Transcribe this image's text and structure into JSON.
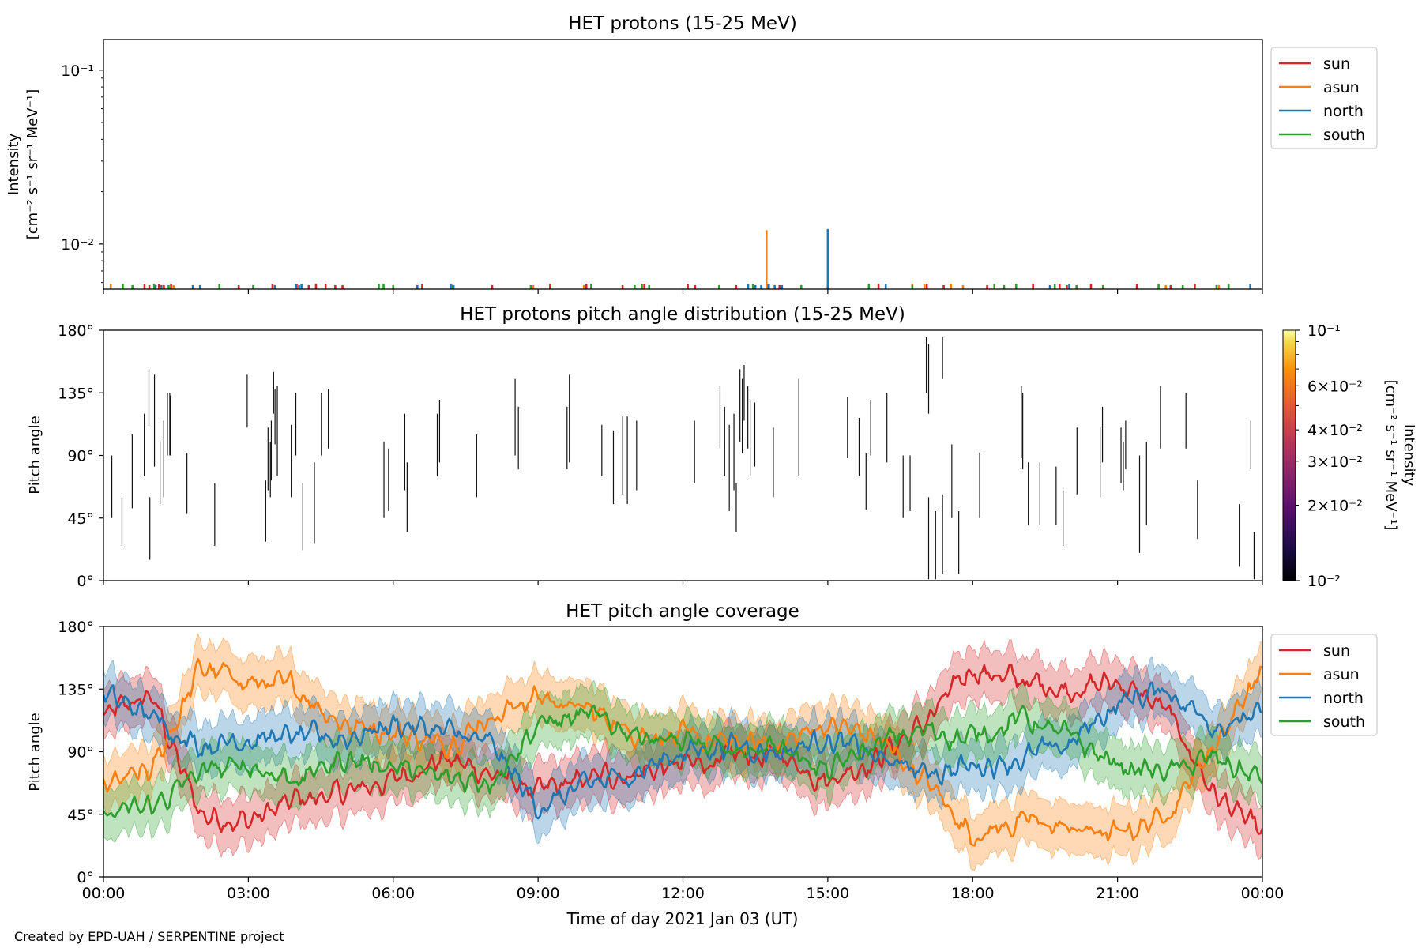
{
  "figure": {
    "xlabel": "Time of day 2021 Jan 03 (UT)",
    "credit": "Created by EPD-UAH / SERPENTINE project",
    "xticks": [
      "00:00",
      "03:00",
      "06:00",
      "09:00",
      "12:00",
      "15:00",
      "18:00",
      "21:00",
      "00:00"
    ]
  },
  "colors": {
    "sun": "#d62728",
    "asun": "#ff7f0e",
    "north": "#1f77b4",
    "south": "#2ca02c"
  },
  "chart_data": [
    {
      "id": "intensity",
      "type": "line",
      "title": "HET protons (15-25 MeV)",
      "ylabel_line1": "Intensity",
      "ylabel_line2": "[cm⁻² s⁻¹ sr⁻¹ MeV⁻¹]",
      "yscale": "log",
      "ylim": [
        0.0055,
        0.15
      ],
      "yticks": [
        {
          "value": 0.1,
          "label": "10⁻¹"
        },
        {
          "value": 0.01,
          "label": "10⁻²"
        }
      ],
      "xlim_hours": [
        0,
        24
      ],
      "legend": [
        "sun",
        "asun",
        "north",
        "south"
      ],
      "legend_loc": "upper right outside",
      "baseline": 0.0055,
      "spikes": [
        {
          "s": "sun",
          "t": [
            0.85,
            0.95,
            1.15,
            1.25,
            1.4,
            2.8,
            3.5,
            4.0,
            4.25,
            4.4,
            4.6,
            4.8,
            4.95,
            6.6,
            8.05,
            9.25,
            10.0,
            10.75,
            11.2,
            12.1,
            12.25,
            13.1,
            13.75,
            14.0,
            15.0,
            16.05,
            17.05,
            17.4,
            18.3,
            19.25,
            19.8,
            19.95,
            20.45,
            21.4,
            22.1,
            22.6,
            23.3,
            23.75
          ],
          "v": [
            0.0059,
            0.0058,
            0.0059,
            0.0058,
            0.0059,
            0.0058,
            0.0059,
            0.0059,
            0.0058,
            0.0059,
            0.0059,
            0.0058,
            0.0058,
            0.0059,
            0.0058,
            0.0059,
            0.0059,
            0.0058,
            0.0059,
            0.0059,
            0.0058,
            0.0058,
            0.0059,
            0.0058,
            0.0058,
            0.0059,
            0.0059,
            0.0058,
            0.0058,
            0.0059,
            0.0059,
            0.0058,
            0.0059,
            0.0059,
            0.0058,
            0.0059,
            0.0058,
            0.0058
          ]
        },
        {
          "s": "asun",
          "t": [
            0.15,
            1.45,
            3.55,
            8.9,
            9.95,
            13.73,
            16.75,
            17.0,
            17.55,
            17.8,
            22.0,
            23.1
          ],
          "v": [
            0.0059,
            0.0058,
            0.0058,
            0.0058,
            0.0058,
            0.012,
            0.0059,
            0.0059,
            0.0059,
            0.0058,
            0.0058,
            0.0058
          ]
        },
        {
          "s": "north",
          "t": [
            1.08,
            1.2,
            1.85,
            2.0,
            3.55,
            3.98,
            4.05,
            4.1,
            6.5,
            7.2,
            7.25,
            13.35,
            13.5,
            13.62,
            13.78,
            13.9,
            14.05,
            15.0,
            16.2,
            19.6,
            20.0,
            23.75
          ],
          "v": [
            0.0058,
            0.0058,
            0.0058,
            0.0058,
            0.0058,
            0.0059,
            0.0058,
            0.0059,
            0.0058,
            0.0059,
            0.0058,
            0.0059,
            0.0058,
            0.0058,
            0.0059,
            0.0058,
            0.0058,
            0.0122,
            0.0059,
            0.0058,
            0.0059,
            0.0059
          ]
        },
        {
          "s": "south",
          "t": [
            0.4,
            0.6,
            1.05,
            1.35,
            2.4,
            3.1,
            5.7,
            5.8,
            6.0,
            7.22,
            8.85,
            10.1,
            11.0,
            11.15,
            11.3,
            12.75,
            13.45,
            14.45,
            15.85,
            16.75,
            18.45,
            18.65,
            18.9,
            19.7,
            20.15,
            20.7,
            21.85,
            22.35,
            23.05,
            23.3
          ],
          "v": [
            0.0059,
            0.0058,
            0.0059,
            0.0058,
            0.0059,
            0.0058,
            0.0059,
            0.0059,
            0.0058,
            0.0058,
            0.0058,
            0.0059,
            0.0058,
            0.0059,
            0.0058,
            0.0058,
            0.0059,
            0.0058,
            0.0059,
            0.0058,
            0.0059,
            0.0058,
            0.0059,
            0.0059,
            0.0058,
            0.0058,
            0.0059,
            0.0058,
            0.0058,
            0.0059
          ]
        }
      ]
    },
    {
      "id": "pad",
      "type": "scatter",
      "title": "HET protons pitch angle distribution (15-25 MeV)",
      "ylabel": "Pitch angle",
      "ylim": [
        0,
        180
      ],
      "yticks": [
        {
          "value": 0,
          "label": "0°"
        },
        {
          "value": 45,
          "label": "45°"
        },
        {
          "value": 90,
          "label": "90°"
        },
        {
          "value": 135,
          "label": "135°"
        },
        {
          "value": 180,
          "label": "180°"
        }
      ],
      "xlim_hours": [
        0,
        24
      ],
      "colorbar": {
        "label_line1": "Intensity",
        "label_line2": "[cm⁻² s⁻¹ sr⁻¹ MeV⁻¹]",
        "scale": "log",
        "range": [
          0.01,
          0.1
        ],
        "ticks": [
          {
            "value": 0.1,
            "label": "10⁻¹",
            "major": true
          },
          {
            "value": 0.06,
            "label": "6×10⁻²",
            "major": false
          },
          {
            "value": 0.04,
            "label": "4×10⁻²",
            "major": false
          },
          {
            "value": 0.03,
            "label": "3×10⁻²",
            "major": false
          },
          {
            "value": 0.02,
            "label": "2×10⁻²",
            "major": false
          },
          {
            "value": 0.01,
            "label": "10⁻²",
            "major": true
          }
        ]
      },
      "segments": [
        [
          0.18,
          45,
          90
        ],
        [
          0.4,
          25,
          60
        ],
        [
          0.62,
          52,
          105
        ],
        [
          0.88,
          75,
          120
        ],
        [
          0.98,
          110,
          152
        ],
        [
          1.0,
          15,
          60
        ],
        [
          1.1,
          82,
          148
        ],
        [
          1.22,
          55,
          100
        ],
        [
          1.3,
          60,
          115
        ],
        [
          1.38,
          90,
          135
        ],
        [
          1.43,
          90,
          135
        ],
        [
          1.45,
          90,
          133
        ],
        [
          1.8,
          48,
          92
        ],
        [
          2.4,
          25,
          70
        ],
        [
          3.1,
          110,
          148
        ],
        [
          3.5,
          28,
          72
        ],
        [
          3.55,
          65,
          110
        ],
        [
          3.6,
          60,
          100
        ],
        [
          3.62,
          72,
          115
        ],
        [
          3.67,
          120,
          150
        ],
        [
          3.7,
          98,
          138
        ],
        [
          3.75,
          75,
          140
        ],
        [
          4.05,
          60,
          112
        ],
        [
          4.15,
          90,
          135
        ],
        [
          4.3,
          22,
          70
        ],
        [
          4.55,
          27,
          85
        ],
        [
          4.7,
          90,
          135
        ],
        [
          4.85,
          95,
          138
        ],
        [
          6.05,
          45,
          100
        ],
        [
          6.15,
          50,
          95
        ],
        [
          6.5,
          65,
          120
        ],
        [
          6.55,
          35,
          85
        ],
        [
          7.2,
          75,
          120
        ],
        [
          7.25,
          85,
          130
        ],
        [
          8.05,
          60,
          105
        ],
        [
          8.88,
          90,
          145
        ],
        [
          8.95,
          80,
          125
        ],
        [
          10.0,
          80,
          125
        ],
        [
          10.05,
          85,
          148
        ],
        [
          10.75,
          75,
          112
        ],
        [
          11.0,
          55,
          108
        ],
        [
          11.2,
          62,
          118
        ],
        [
          11.3,
          55,
          118
        ],
        [
          11.5,
          65,
          115
        ],
        [
          12.75,
          70,
          115
        ],
        [
          13.3,
          95,
          140
        ],
        [
          13.4,
          75,
          125
        ],
        [
          13.5,
          50,
          112
        ],
        [
          13.6,
          65,
          120
        ],
        [
          13.65,
          35,
          70
        ],
        [
          13.73,
          100,
          152
        ],
        [
          13.78,
          92,
          145
        ],
        [
          13.82,
          115,
          155
        ],
        [
          13.9,
          95,
          140
        ],
        [
          13.95,
          75,
          130
        ],
        [
          14.05,
          82,
          128
        ],
        [
          14.45,
          60,
          110
        ],
        [
          15.0,
          75,
          145
        ],
        [
          16.05,
          88,
          132
        ],
        [
          16.3,
          75,
          117
        ],
        [
          16.55,
          90,
          130
        ],
        [
          16.45,
          51,
          92
        ],
        [
          16.9,
          85,
          135
        ],
        [
          17.25,
          45,
          90
        ],
        [
          17.4,
          50,
          90
        ],
        [
          17.75,
          135,
          175
        ],
        [
          17.8,
          120,
          170
        ],
        [
          18.1,
          145,
          175
        ],
        [
          17.8,
          1,
          60
        ],
        [
          17.95,
          1,
          50
        ],
        [
          18.1,
          5,
          62
        ],
        [
          18.3,
          45,
          98
        ],
        [
          18.45,
          5,
          50
        ],
        [
          18.9,
          45,
          92
        ],
        [
          19.8,
          88,
          140
        ],
        [
          19.83,
          80,
          135
        ],
        [
          19.95,
          40,
          85
        ],
        [
          20.2,
          40,
          85
        ],
        [
          20.55,
          40,
          82
        ],
        [
          20.7,
          25,
          65
        ],
        [
          21.0,
          62,
          110
        ],
        [
          21.5,
          60,
          110
        ],
        [
          21.55,
          85,
          125
        ],
        [
          21.95,
          70,
          110
        ],
        [
          22.0,
          65,
          100
        ],
        [
          22.05,
          80,
          115
        ],
        [
          22.35,
          20,
          90
        ],
        [
          22.5,
          40,
          100
        ],
        [
          22.8,
          95,
          140
        ],
        [
          23.35,
          95,
          135
        ],
        [
          23.6,
          30,
          72
        ],
        [
          24.5,
          10,
          55
        ],
        [
          24.75,
          80,
          115
        ],
        [
          24.82,
          1,
          35
        ]
      ]
    },
    {
      "id": "coverage",
      "type": "area",
      "title": "HET pitch angle coverage",
      "ylabel": "Pitch angle",
      "ylim": [
        0,
        180
      ],
      "yticks": [
        {
          "value": 0,
          "label": "0°"
        },
        {
          "value": 45,
          "label": "45°"
        },
        {
          "value": 90,
          "label": "90°"
        },
        {
          "value": 135,
          "label": "135°"
        },
        {
          "value": 180,
          "label": "180°"
        }
      ],
      "xlim_hours": [
        0,
        24
      ],
      "legend": [
        "sun",
        "asun",
        "north",
        "south"
      ],
      "legend_loc": "upper right outside",
      "band_halfwidth_deg": 18,
      "hours": [
        0,
        1,
        2,
        3,
        4,
        5,
        6,
        7,
        8,
        9,
        10,
        11,
        12,
        13,
        14,
        15,
        16,
        17,
        18,
        19,
        20,
        21,
        22,
        23,
        24
      ],
      "series": [
        {
          "name": "sun",
          "values": [
            115,
            130,
            45,
            40,
            55,
            60,
            70,
            85,
            75,
            60,
            70,
            75,
            80,
            85,
            88,
            70,
            85,
            110,
            150,
            140,
            135,
            140,
            120,
            60,
            30
          ]
        },
        {
          "name": "asun",
          "values": [
            65,
            75,
            150,
            140,
            135,
            110,
            105,
            95,
            115,
            130,
            120,
            105,
            100,
            95,
            95,
            110,
            100,
            70,
            30,
            40,
            35,
            30,
            45,
            95,
            150
          ]
        },
        {
          "name": "north",
          "values": [
            130,
            115,
            95,
            100,
            100,
            100,
            110,
            105,
            95,
            50,
            65,
            75,
            90,
            95,
            90,
            100,
            85,
            75,
            80,
            85,
            95,
            125,
            135,
            110,
            115
          ]
        },
        {
          "name": "south",
          "values": [
            45,
            50,
            75,
            80,
            70,
            85,
            80,
            70,
            70,
            110,
            115,
            105,
            95,
            90,
            95,
            75,
            95,
            105,
            100,
            115,
            100,
            80,
            75,
            85,
            70
          ]
        }
      ]
    }
  ]
}
